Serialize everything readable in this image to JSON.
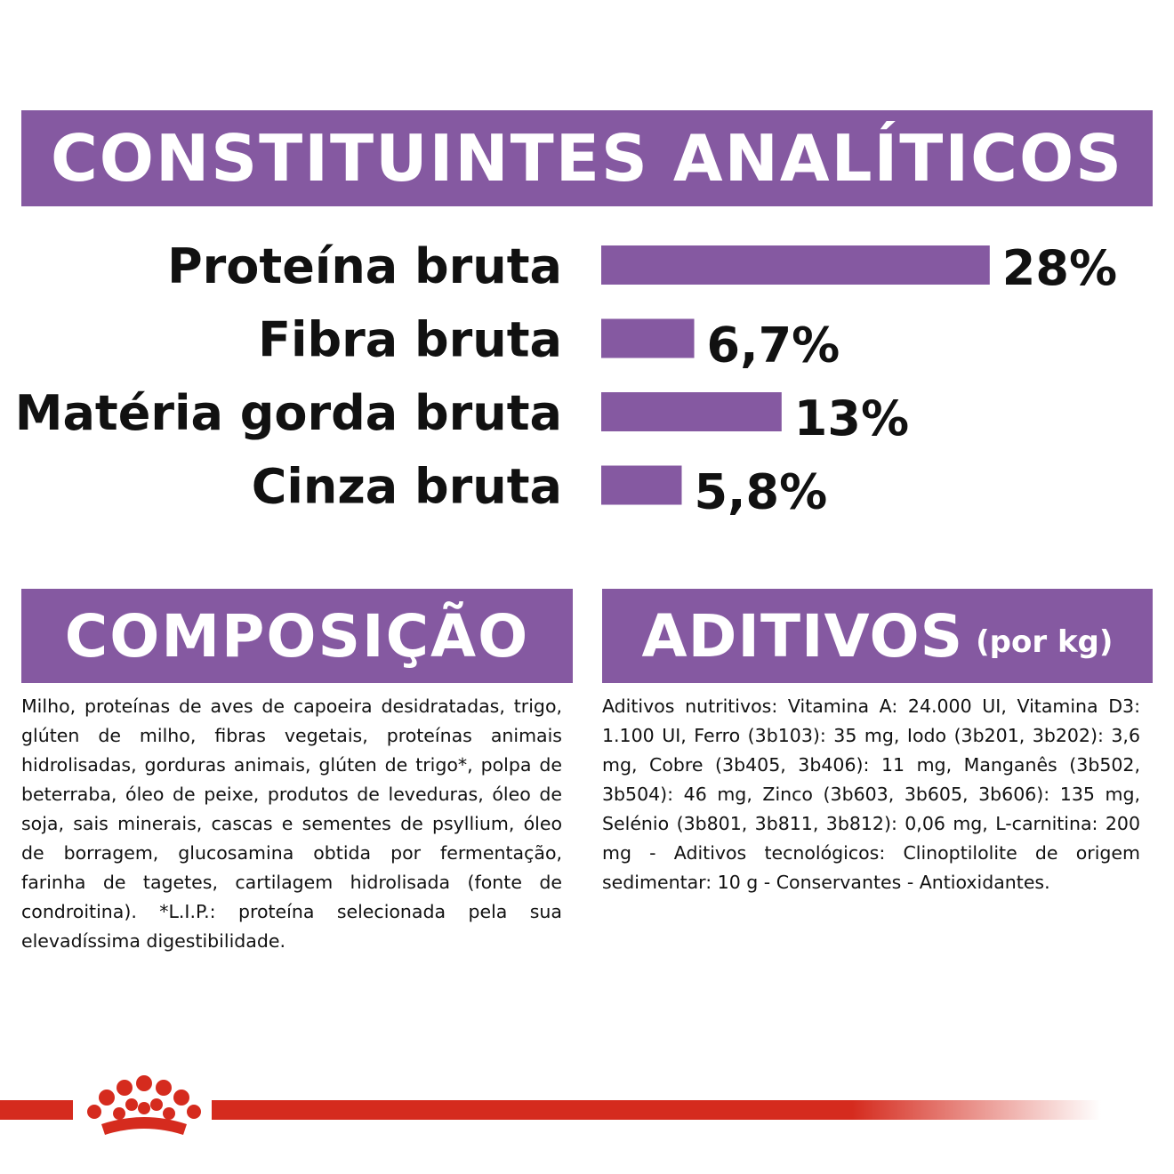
{
  "sections": {
    "analytics_title": "CONSTITUINTES ANALÍTICOS",
    "composition_title": "COMPOSIÇÃO",
    "additives_title": "ADITIVOS",
    "additives_subtitle": "(por kg)"
  },
  "chart_data": {
    "type": "bar",
    "orientation": "horizontal",
    "categories": [
      "Proteína bruta",
      "Fibra bruta",
      "Matéria gorda bruta",
      "Cinza bruta"
    ],
    "values": [
      28,
      6.7,
      13,
      5.8
    ],
    "value_labels": [
      "28%",
      "6,7%",
      "13%",
      "5,8%"
    ],
    "grid": false,
    "bar_color": "#8559a1"
  },
  "composition_text": "Milho, proteínas de aves de capoeira desidratadas, trigo, glúten de milho, fibras vegetais, proteínas animais hidrolisadas, gorduras animais, glúten de trigo*, polpa de beterraba, óleo de peixe, produtos de leveduras, óleo de soja, sais minerais, cascas e sementes de psyllium, óleo de borragem, glucosamina obtida por fermentação, farinha de tagetes, cartilagem hidrolisada (fonte de condroitina). *L.I.P.: proteína selecionada pela sua elevadíssima digestibilidade.",
  "additives_text": "Aditivos nutritivos: Vitamina A: 24.000 UI, Vitamina D3: 1.100 UI, Ferro (3b103): 35 mg, Iodo (3b201, 3b202): 3,6 mg, Cobre (3b405, 3b406): 11 mg, Manganês (3b502, 3b504): 46 mg, Zinco (3b603, 3b605, 3b606): 135 mg, Selénio (3b801, 3b811, 3b812): 0,06 mg, L-carnitina: 200 mg - Aditivos tecnológicos: Clinoptilolite de origem sedimentar: 10 g - Conservantes - Antioxidantes.",
  "colors": {
    "brand_purple": "#8559a1",
    "brand_red": "#d52b1e"
  },
  "footer": {
    "logo_icon": "royal-canin-crown-icon"
  }
}
